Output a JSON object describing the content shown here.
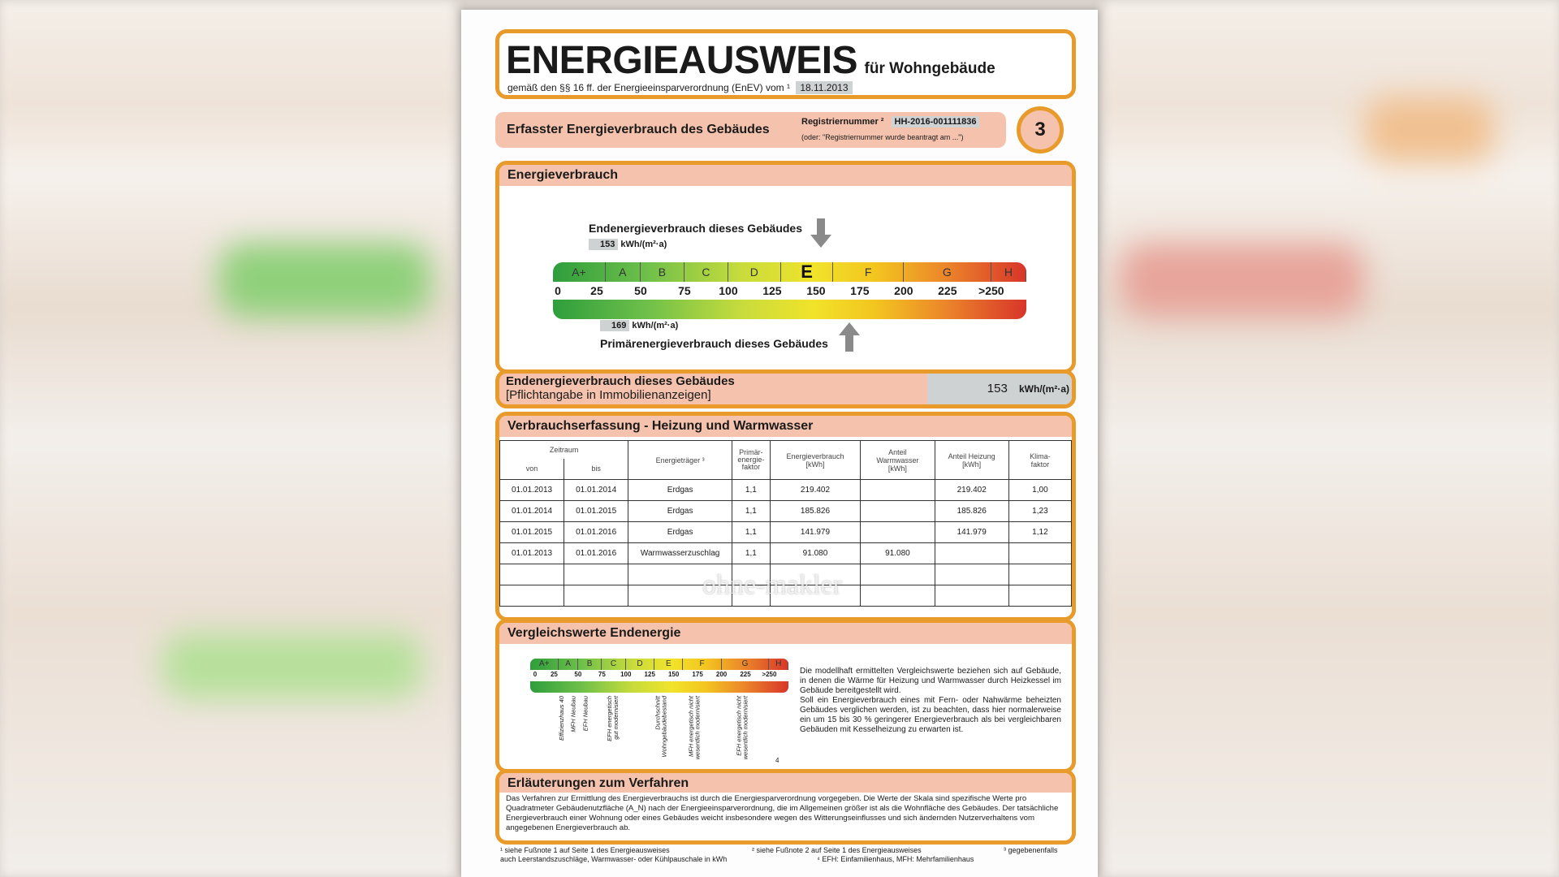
{
  "title": {
    "main": "ENERGIEAUSWEIS",
    "sub": "für Wohngebäude",
    "law": "gemäß den §§ 16 ff. der Energieeinsparverordnung (EnEV) vom ¹",
    "date": "18.11.2013"
  },
  "section_bar": {
    "label": "Erfasster Energieverbrauch des Gebäudes",
    "reg_label": "Registriernummer ²",
    "reg_value": "HH-2016-001111836",
    "reg_note": "(oder: \"Registriernummer wurde beantragt am ...\")",
    "page": "3"
  },
  "energieverbrauch": {
    "heading": "Energieverbrauch",
    "end_label": "Endenergieverbrauch dieses Gebäudes",
    "end_value": 153,
    "primary_label": "Primärenergieverbrauch dieses Gebäudes",
    "primary_value": 169,
    "unit": "kWh/(m²·a)",
    "classes": [
      {
        "label": "A+",
        "from": 0,
        "to": 30
      },
      {
        "label": "A",
        "from": 30,
        "to": 50
      },
      {
        "label": "B",
        "from": 50,
        "to": 75
      },
      {
        "label": "C",
        "from": 75,
        "to": 100
      },
      {
        "label": "D",
        "from": 100,
        "to": 130
      },
      {
        "label": "E",
        "from": 130,
        "to": 160
      },
      {
        "label": "F",
        "from": 160,
        "to": 200
      },
      {
        "label": "G",
        "from": 200,
        "to": 250
      },
      {
        "label": "H",
        "from": 250,
        "to": 270
      }
    ],
    "active_class": "E",
    "ticks": [
      "0",
      "25",
      "50",
      "75",
      "100",
      "125",
      "150",
      "175",
      "200",
      "225",
      ">250"
    ]
  },
  "pflicht": {
    "line1": "Endenergieverbrauch dieses Gebäudes",
    "line2": "[Pflichtangabe in Immobilienanzeigen]",
    "value": "153",
    "unit": "kWh/(m²·a)"
  },
  "verbrauch": {
    "heading": "Verbrauchserfassung - Heizung und Warmwasser",
    "headers": {
      "zeitraum": "Zeitraum",
      "von": "von",
      "bis": "bis",
      "traeger": "Energieträger ³",
      "pef": "Primär-\nenergie-\nfaktor",
      "ev": "Energieverbrauch\n[kWh]",
      "ww": "Anteil\nWarmwasser\n[kWh]",
      "hz": "Anteil Heizung\n[kWh]",
      "kf": "Klima-\nfaktor"
    },
    "rows": [
      [
        "01.01.2013",
        "01.01.2014",
        "Erdgas",
        "1,1",
        "219.402",
        "",
        "219.402",
        "1,00"
      ],
      [
        "01.01.2014",
        "01.01.2015",
        "Erdgas",
        "1,1",
        "185.826",
        "",
        "185.826",
        "1,23"
      ],
      [
        "01.01.2015",
        "01.01.2016",
        "Erdgas",
        "1,1",
        "141.979",
        "",
        "141.979",
        "1,12"
      ],
      [
        "01.01.2013",
        "01.01.2016",
        "Warmwasserzuschlag",
        "1,1",
        "91.080",
        "91.080",
        "",
        ""
      ],
      [
        "",
        "",
        "",
        "",
        "",
        "",
        "",
        ""
      ],
      [
        "",
        "",
        "",
        "",
        "",
        "",
        "",
        ""
      ]
    ]
  },
  "watermark": "ohne-makler",
  "vergleich": {
    "heading": "Vergleichswerte Endenergie",
    "footnote_mark": "4",
    "refs": [
      {
        "label": "Effizienzhaus 40",
        "value": 30
      },
      {
        "label": "MFH Neubau",
        "value": 42
      },
      {
        "label": "EFH Neubau",
        "value": 55
      },
      {
        "label": "EFH energetisch\ngut modernisiert",
        "value": 80
      },
      {
        "label": "Durchschnitt\nWohngebäudebestand",
        "value": 130
      },
      {
        "label": "MFH energetisch nicht\nwesentlich modernisiert",
        "value": 165
      },
      {
        "label": "EFH energetisch nicht\nwesentlich modernisiert",
        "value": 215
      }
    ],
    "text": "Die modellhaft ermittelten Vergleichswerte beziehen sich auf Gebäude, in denen die Wärme für Heizung und Warmwasser durch Heizkessel im Gebäude bereitgestellt wird.",
    "text2": "Soll ein Energieverbrauch eines mit Fern- oder Nahwärme beheizten Gebäudes verglichen werden, ist zu beachten, dass hier normalerweise ein um 15 bis 30 % geringerer Energieverbrauch als bei vergleichbaren Gebäuden mit Kesselheizung zu erwarten ist."
  },
  "erlaeuterung": {
    "heading": "Erläuterungen zum Verfahren",
    "text": "Das Verfahren zur Ermittlung des Energieverbrauchs ist durch die Energiesparverordnung vorgegeben. Die Werte der Skala sind spezifische Werte pro Quadratmeter Gebäudenutzfläche (A_N) nach der Energieeinsparverordnung, die im Allgemeinen größer ist als die Wohnfläche des Gebäudes. Der tatsächliche Energieverbrauch einer Wohnung oder eines Gebäudes weicht insbesondere wegen des Witterungseinflusses und sich ändernden Nutzerverhaltens vom angegebenen Energieverbrauch ab."
  },
  "footnotes": {
    "f1": "¹ siehe Fußnote 1 auf Seite 1 des Energieausweises",
    "f2": "² siehe Fußnote 2 auf Seite 1 des Energieausweises",
    "f3": "³ gegebenenfalls",
    "f3b": "auch Leerstandszuschläge, Warmwasser- oder Kühlpauschale in kWh",
    "f4": "⁴ EFH: Einfamilienhaus, MFH: Mehrfamilienhaus"
  },
  "colors": {
    "frame": "#e89a2a",
    "header": "#f5c3ad",
    "highlight": "#cfd2d2"
  }
}
